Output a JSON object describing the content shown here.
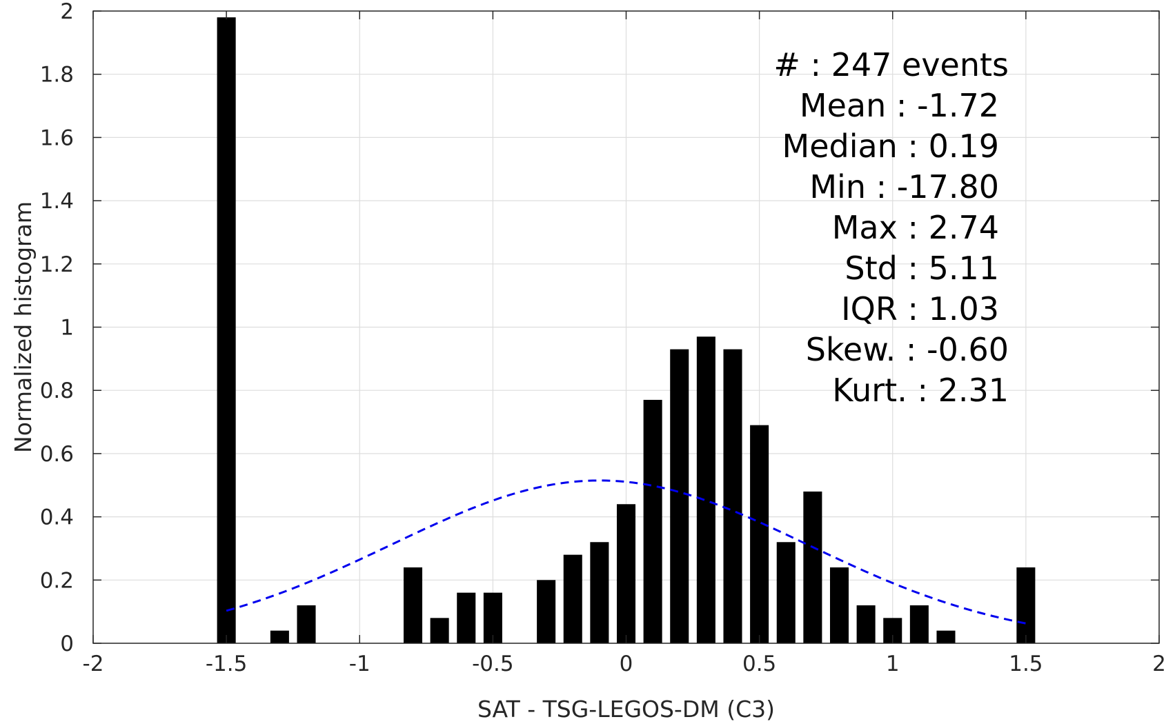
{
  "chart_data": {
    "type": "bar",
    "xlabel": "SAT - TSG-LEGOS-DM (C3)",
    "ylabel": "Normalized histogram",
    "xlim": [
      -2,
      2
    ],
    "ylim": [
      0,
      2
    ],
    "xticks": [
      -2,
      -1.5,
      -1,
      -0.5,
      0,
      0.5,
      1,
      1.5,
      2
    ],
    "xtick_labels": [
      "-2",
      "-1.5",
      "-1",
      "-0.5",
      "0",
      "0.5",
      "1",
      "1.5",
      "2"
    ],
    "yticks": [
      0,
      0.2,
      0.4,
      0.6,
      0.8,
      1,
      1.2,
      1.4,
      1.6,
      1.8,
      2
    ],
    "ytick_labels": [
      "0",
      "0.2",
      "0.4",
      "0.6",
      "0.8",
      "1",
      "1.2",
      "1.4",
      "1.6",
      "1.8",
      "2"
    ],
    "grid": true,
    "bin_width": 0.1,
    "bars": [
      {
        "x": -1.5,
        "y": 1.98
      },
      {
        "x": -1.3,
        "y": 0.04
      },
      {
        "x": -1.2,
        "y": 0.12
      },
      {
        "x": -0.8,
        "y": 0.24
      },
      {
        "x": -0.7,
        "y": 0.08
      },
      {
        "x": -0.6,
        "y": 0.16
      },
      {
        "x": -0.5,
        "y": 0.16
      },
      {
        "x": -0.3,
        "y": 0.2
      },
      {
        "x": -0.2,
        "y": 0.28
      },
      {
        "x": -0.1,
        "y": 0.32
      },
      {
        "x": 0.0,
        "y": 0.44
      },
      {
        "x": 0.1,
        "y": 0.77
      },
      {
        "x": 0.2,
        "y": 0.93
      },
      {
        "x": 0.3,
        "y": 0.97
      },
      {
        "x": 0.4,
        "y": 0.93
      },
      {
        "x": 0.5,
        "y": 0.69
      },
      {
        "x": 0.6,
        "y": 0.32
      },
      {
        "x": 0.7,
        "y": 0.48
      },
      {
        "x": 0.8,
        "y": 0.24
      },
      {
        "x": 0.9,
        "y": 0.12
      },
      {
        "x": 1.0,
        "y": 0.08
      },
      {
        "x": 1.1,
        "y": 0.12
      },
      {
        "x": 1.2,
        "y": 0.04
      },
      {
        "x": 1.5,
        "y": 0.24
      }
    ],
    "bar_color": "#000000",
    "fit_curve": {
      "style": "dashed",
      "color": "#0000ee",
      "x_range": [
        -1.5,
        1.5
      ],
      "mean": -0.1,
      "std": 0.78,
      "peak": 0.515
    },
    "stats_lines": [
      "#  : 247 events",
      "Mean : -1.72",
      "Median : 0.19",
      "Min : -17.80",
      "Max : 2.74",
      "Std : 5.11",
      "IQR : 1.03",
      "Skew. : -0.60",
      "Kurt. : 2.31"
    ]
  }
}
